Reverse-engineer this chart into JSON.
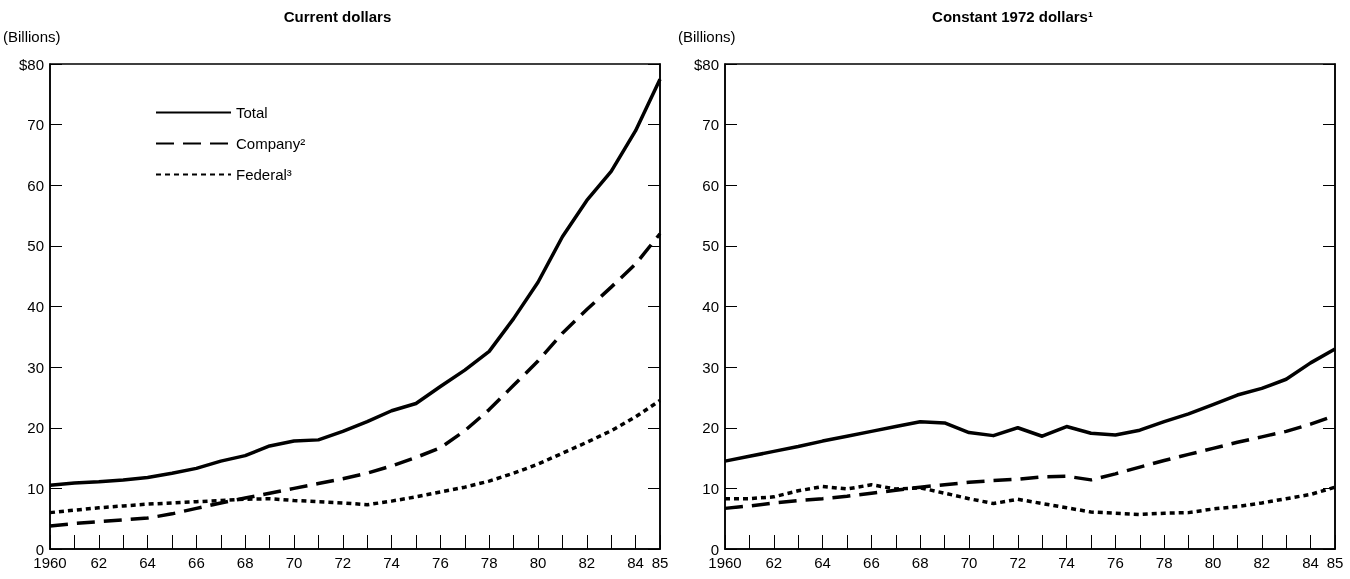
{
  "chart_data": [
    {
      "type": "line",
      "title": "Current dollars",
      "ylabel": "(Billions)",
      "x": [
        1960,
        1961,
        1962,
        1963,
        1964,
        1965,
        1966,
        1967,
        1968,
        1969,
        1970,
        1971,
        1972,
        1973,
        1974,
        1975,
        1976,
        1977,
        1978,
        1979,
        1980,
        1981,
        1982,
        1983,
        1984,
        1985
      ],
      "xlim": [
        1960,
        1985
      ],
      "xticks": [
        1960,
        {
          "value": 1961,
          "label": null
        },
        {
          "value": 1962,
          "label": "62"
        },
        {
          "value": 1963,
          "label": null
        },
        {
          "value": 1964,
          "label": "64"
        },
        {
          "value": 1965,
          "label": null
        },
        {
          "value": 1966,
          "label": "66"
        },
        {
          "value": 1967,
          "label": null
        },
        {
          "value": 1968,
          "label": "68"
        },
        {
          "value": 1969,
          "label": null
        },
        {
          "value": 1970,
          "label": "70"
        },
        {
          "value": 1971,
          "label": null
        },
        {
          "value": 1972,
          "label": "72"
        },
        {
          "value": 1973,
          "label": null
        },
        {
          "value": 1974,
          "label": "74"
        },
        {
          "value": 1975,
          "label": null
        },
        {
          "value": 1976,
          "label": "76"
        },
        {
          "value": 1977,
          "label": null
        },
        {
          "value": 1978,
          "label": "78"
        },
        {
          "value": 1979,
          "label": null
        },
        {
          "value": 1980,
          "label": "80"
        },
        {
          "value": 1981,
          "label": null
        },
        {
          "value": 1982,
          "label": "82"
        },
        {
          "value": 1983,
          "label": null
        },
        {
          "value": 1984,
          "label": "84"
        },
        {
          "value": 1985,
          "label": "85"
        }
      ],
      "ylim": [
        0,
        80
      ],
      "yticks": [
        0,
        10,
        20,
        30,
        40,
        50,
        60,
        70,
        {
          "value": 80,
          "label": "$80"
        }
      ],
      "grid": false,
      "legend": "top left",
      "marker": "none",
      "series": [
        {
          "name": "Total",
          "color": "#000000",
          "line_style": "solid",
          "values": [
            10.5,
            10.9,
            11.1,
            11.4,
            11.8,
            12.5,
            13.3,
            14.5,
            15.4,
            17.0,
            17.8,
            18.0,
            19.4,
            21.0,
            22.8,
            24.0,
            26.8,
            29.5,
            32.6,
            38.0,
            44.0,
            51.5,
            57.5,
            62.3,
            69.0,
            77.5
          ]
        },
        {
          "name": "Company²",
          "color": "#000000",
          "line_style": "dashed",
          "values": [
            3.8,
            4.2,
            4.5,
            4.8,
            5.1,
            5.8,
            6.7,
            7.6,
            8.4,
            9.2,
            10.0,
            10.8,
            11.6,
            12.5,
            13.7,
            15.1,
            16.7,
            19.5,
            23.0,
            27.0,
            31.0,
            35.6,
            39.5,
            43.2,
            47.0,
            52.0
          ]
        },
        {
          "name": "Federal³",
          "color": "#000000",
          "line_style": "dotted",
          "values": [
            6.0,
            6.4,
            6.8,
            7.1,
            7.4,
            7.6,
            7.8,
            8.0,
            8.2,
            8.3,
            8.0,
            7.8,
            7.6,
            7.3,
            7.9,
            8.6,
            9.4,
            10.2,
            11.2,
            12.5,
            14.0,
            15.8,
            17.6,
            19.5,
            21.8,
            24.5
          ]
        }
      ]
    },
    {
      "type": "line",
      "title": "Constant 1972 dollars¹",
      "ylabel": "(Billions)",
      "x": [
        1960,
        1961,
        1962,
        1963,
        1964,
        1965,
        1966,
        1967,
        1968,
        1969,
        1970,
        1971,
        1972,
        1973,
        1974,
        1975,
        1976,
        1977,
        1978,
        1979,
        1980,
        1981,
        1982,
        1983,
        1984,
        1985
      ],
      "xlim": [
        1960,
        1985
      ],
      "xticks": [
        1960,
        {
          "value": 1961,
          "label": null
        },
        {
          "value": 1962,
          "label": "62"
        },
        {
          "value": 1963,
          "label": null
        },
        {
          "value": 1964,
          "label": "64"
        },
        {
          "value": 1965,
          "label": null
        },
        {
          "value": 1966,
          "label": "66"
        },
        {
          "value": 1967,
          "label": null
        },
        {
          "value": 1968,
          "label": "68"
        },
        {
          "value": 1969,
          "label": null
        },
        {
          "value": 1970,
          "label": "70"
        },
        {
          "value": 1971,
          "label": null
        },
        {
          "value": 1972,
          "label": "72"
        },
        {
          "value": 1973,
          "label": null
        },
        {
          "value": 1974,
          "label": "74"
        },
        {
          "value": 1975,
          "label": null
        },
        {
          "value": 1976,
          "label": "76"
        },
        {
          "value": 1977,
          "label": null
        },
        {
          "value": 1978,
          "label": "78"
        },
        {
          "value": 1979,
          "label": null
        },
        {
          "value": 1980,
          "label": "80"
        },
        {
          "value": 1981,
          "label": null
        },
        {
          "value": 1982,
          "label": "82"
        },
        {
          "value": 1983,
          "label": null
        },
        {
          "value": 1984,
          "label": "84"
        },
        {
          "value": 1985,
          "label": "85"
        }
      ],
      "ylim": [
        0,
        80
      ],
      "yticks": [
        0,
        10,
        20,
        30,
        40,
        50,
        60,
        70,
        {
          "value": 80,
          "label": "$80"
        }
      ],
      "grid": false,
      "marker": "none",
      "series": [
        {
          "color": "#000000",
          "line_style": "solid",
          "values": [
            14.5,
            15.3,
            16.1,
            16.9,
            17.8,
            18.6,
            19.4,
            20.2,
            21.0,
            20.8,
            19.2,
            18.7,
            20.0,
            18.6,
            20.2,
            19.1,
            18.8,
            19.6,
            21.0,
            22.3,
            23.8,
            25.4,
            26.5,
            28.0,
            30.7,
            33.0
          ]
        },
        {
          "color": "#000000",
          "line_style": "dashed",
          "values": [
            6.7,
            7.1,
            7.6,
            8.0,
            8.3,
            8.7,
            9.2,
            9.7,
            10.2,
            10.6,
            11.0,
            11.3,
            11.5,
            11.9,
            12.0,
            11.4,
            12.4,
            13.5,
            14.6,
            15.6,
            16.6,
            17.6,
            18.5,
            19.4,
            20.6,
            22.0
          ]
        },
        {
          "color": "#000000",
          "line_style": "dotted",
          "values": [
            8.3,
            8.3,
            8.6,
            9.6,
            10.3,
            9.9,
            10.6,
            9.9,
            10.1,
            9.2,
            8.3,
            7.5,
            8.2,
            7.5,
            6.8,
            6.1,
            5.9,
            5.7,
            5.9,
            6.0,
            6.6,
            7.0,
            7.6,
            8.3,
            9.0,
            10.2
          ]
        }
      ]
    }
  ]
}
